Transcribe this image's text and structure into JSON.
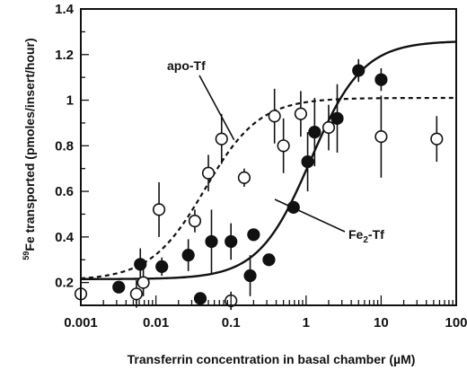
{
  "chart_data": {
    "type": "scatter",
    "title": "",
    "xlabel": "Transferrin concentration in basal chamber (µM)",
    "ylabel_isotope": "59",
    "ylabel": "Fe transported (pmoles/insert/hour)",
    "x_scale": "log",
    "xlim": [
      0.001,
      100
    ],
    "ylim": [
      0.1,
      1.4
    ],
    "x_ticks": [
      0.001,
      0.01,
      0.1,
      1,
      10,
      100
    ],
    "x_tick_labels": [
      "0.001",
      "0.01",
      "0.1",
      "1",
      "10",
      "100"
    ],
    "y_ticks": [
      0.2,
      0.4,
      0.6,
      0.8,
      1,
      1.2,
      1.4
    ],
    "y_tick_labels": [
      "0.2",
      "0.4",
      "0.6",
      "0.8",
      "1",
      "1.2",
      "1.4"
    ],
    "grid": false,
    "legend": "none",
    "annotations": [
      {
        "text": "apo-Tf",
        "series": "apo-Tf"
      },
      {
        "text_main": "Fe",
        "text_sub": "2",
        "text_tail": "-Tf",
        "series": "Fe2-Tf"
      }
    ],
    "series": [
      {
        "key": "apo-Tf",
        "marker": "open-circle",
        "fit": "dashed",
        "fit_curve": {
          "bottom": 0.21,
          "top": 1.01,
          "ec50": 0.045,
          "hill": 1.2
        },
        "points": [
          {
            "x": 0.001,
            "y": 0.15,
            "err": 0
          },
          {
            "x": 0.0055,
            "y": 0.15,
            "err": 0.06
          },
          {
            "x": 0.0068,
            "y": 0.2,
            "err": 0.06
          },
          {
            "x": 0.011,
            "y": 0.52,
            "err": 0.12
          },
          {
            "x": 0.033,
            "y": 0.47,
            "err": 0.05
          },
          {
            "x": 0.05,
            "y": 0.68,
            "err": 0.08
          },
          {
            "x": 0.075,
            "y": 0.83,
            "err": 0.11
          },
          {
            "x": 0.1,
            "y": 0.12,
            "err": 0.04
          },
          {
            "x": 0.15,
            "y": 0.66,
            "err": 0.04
          },
          {
            "x": 0.38,
            "y": 0.93,
            "err": 0.12
          },
          {
            "x": 0.5,
            "y": 0.8,
            "err": 0.12
          },
          {
            "x": 0.85,
            "y": 0.94,
            "err": 0.1
          },
          {
            "x": 2.0,
            "y": 0.88,
            "err": 0.1
          },
          {
            "x": 10,
            "y": 0.84,
            "err": 0.18
          },
          {
            "x": 55,
            "y": 0.83,
            "err": 0.1
          }
        ]
      },
      {
        "key": "Fe2-Tf",
        "marker": "filled-circle",
        "fit": "solid",
        "fit_curve": {
          "bottom": 0.215,
          "top": 1.26,
          "ec50": 1.15,
          "hill": 1.25
        },
        "points": [
          {
            "x": 0.0032,
            "y": 0.18,
            "err": 0
          },
          {
            "x": 0.0062,
            "y": 0.28,
            "err": 0.07
          },
          {
            "x": 0.012,
            "y": 0.27,
            "err": 0.04
          },
          {
            "x": 0.027,
            "y": 0.32,
            "err": 0.07
          },
          {
            "x": 0.039,
            "y": 0.13,
            "err": 0
          },
          {
            "x": 0.055,
            "y": 0.38,
            "err": 0.14
          },
          {
            "x": 0.1,
            "y": 0.38,
            "err": 0.08
          },
          {
            "x": 0.18,
            "y": 0.23,
            "err": 0.09
          },
          {
            "x": 0.2,
            "y": 0.41,
            "err": 0
          },
          {
            "x": 0.32,
            "y": 0.3,
            "err": 0
          },
          {
            "x": 0.68,
            "y": 0.53,
            "err": 0
          },
          {
            "x": 1.05,
            "y": 0.73,
            "err": 0.13
          },
          {
            "x": 1.3,
            "y": 0.86,
            "err": 0.15
          },
          {
            "x": 2.6,
            "y": 0.92,
            "err": 0.15
          },
          {
            "x": 5.0,
            "y": 1.13,
            "err": 0.05
          },
          {
            "x": 10,
            "y": 1.09,
            "err": 0.05
          }
        ]
      }
    ]
  }
}
